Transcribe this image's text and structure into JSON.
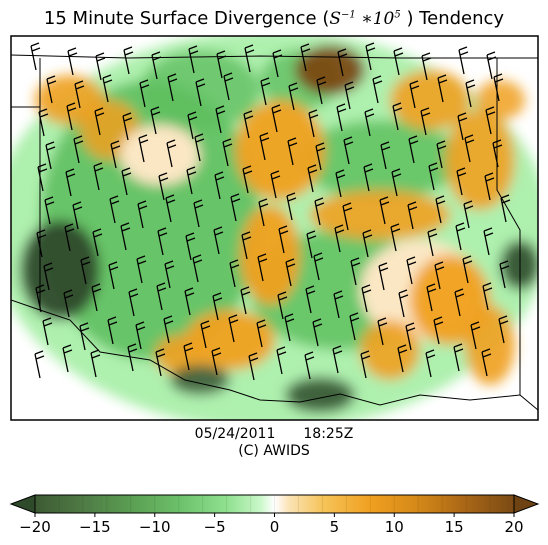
{
  "title": {
    "prefix": "15 Minute Surface Divergence (",
    "math_base": "S",
    "math_exp1": "−1",
    "math_mid": " ∗10",
    "math_exp2": "5",
    "suffix": " ) Tendency"
  },
  "timestamp": {
    "date": "05/24/2011",
    "time": "18:25Z"
  },
  "credit": "(C) AWIDS",
  "colorbar": {
    "ticks": [
      "−20",
      "−15",
      "−10",
      "−5",
      "0",
      "5",
      "10",
      "15",
      "20"
    ],
    "range": [
      -20,
      20
    ],
    "colors": {
      "neg_strong": "#2e4a2a",
      "neg_mid": "#5fbf5f",
      "neg_weak": "#aef0ae",
      "zero": "#ffffff",
      "pos_weak": "#fbe7c4",
      "pos_mid": "#f0a020",
      "pos_strong": "#7a4a14"
    }
  },
  "map": {
    "region": "Oklahoma and surrounding area",
    "layers": [
      "divergence-tendency-fill",
      "state-borders",
      "wind-barbs"
    ]
  }
}
